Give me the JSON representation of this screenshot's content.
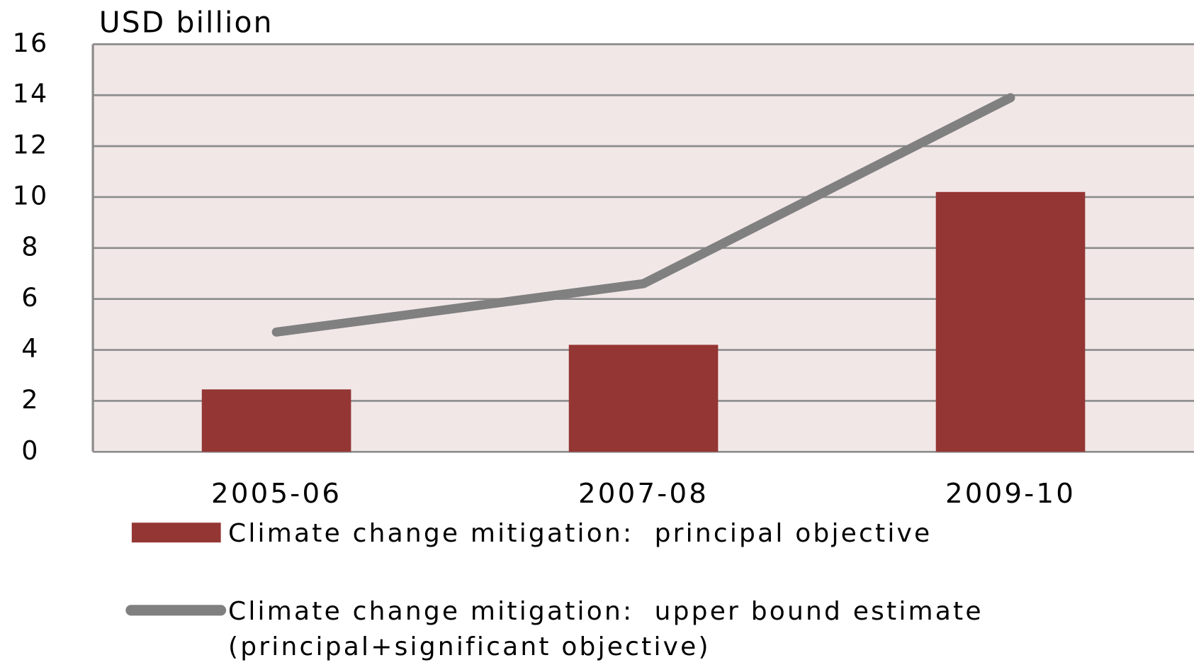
{
  "chart_data": {
    "type": "bar_line",
    "y_label": "USD billion",
    "categories": [
      "2005-06",
      "2007-08",
      "2009-10"
    ],
    "series": [
      {
        "name": "Climate change mitigation:  principal objective",
        "type": "bar",
        "color": "#943634",
        "values": [
          2.45,
          4.2,
          10.2
        ]
      },
      {
        "name": "Climate change mitigation:  upper bound estimate (principal+significant objective)",
        "type": "line",
        "color": "#808080",
        "values": [
          4.7,
          6.6,
          13.9
        ]
      }
    ],
    "ylim": [
      0,
      16
    ],
    "yticks": [
      0,
      2,
      4,
      6,
      8,
      10,
      12,
      14,
      16
    ],
    "grid": true
  }
}
